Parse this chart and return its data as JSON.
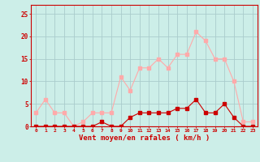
{
  "hours": [
    0,
    1,
    2,
    3,
    4,
    5,
    6,
    7,
    8,
    9,
    10,
    11,
    12,
    13,
    14,
    15,
    16,
    17,
    18,
    19,
    20,
    21,
    22,
    23
  ],
  "wind_avg": [
    0,
    0,
    0,
    0,
    0,
    0,
    0,
    1,
    0,
    0,
    2,
    3,
    3,
    3,
    3,
    4,
    4,
    6,
    3,
    3,
    5,
    2,
    0,
    0
  ],
  "wind_gust": [
    3,
    6,
    3,
    3,
    0,
    1,
    3,
    3,
    3,
    11,
    8,
    13,
    13,
    15,
    13,
    16,
    16,
    21,
    19,
    15,
    15,
    10,
    1,
    1
  ],
  "avg_color": "#cc0000",
  "gust_color": "#ffaaaa",
  "bg_color": "#cceee8",
  "grid_color": "#aacccc",
  "xlabel": "Vent moyen/en rafales ( km/h )",
  "ylabel_ticks": [
    0,
    5,
    10,
    15,
    20,
    25
  ],
  "ylim": [
    0,
    27
  ],
  "xlim": [
    -0.5,
    23.5
  ]
}
